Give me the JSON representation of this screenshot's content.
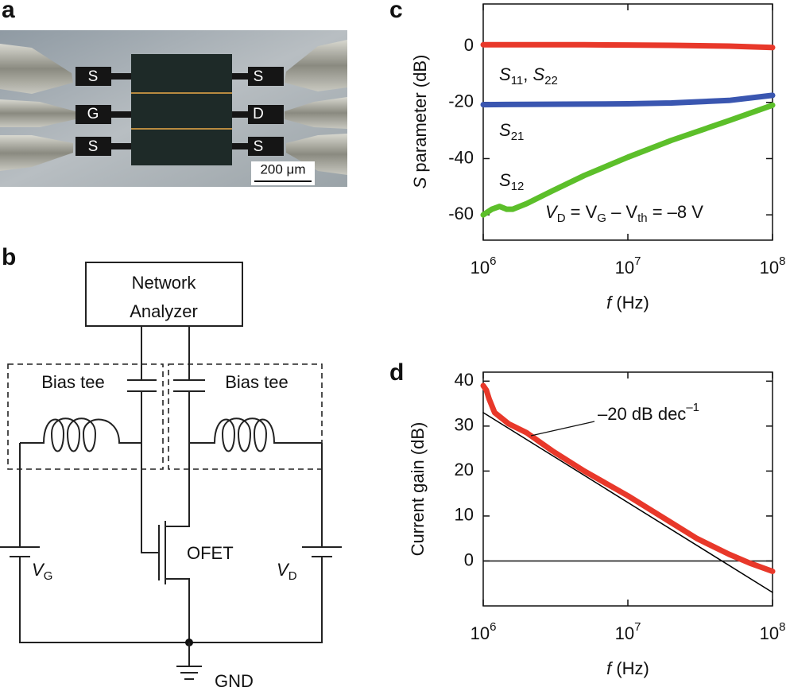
{
  "panel_a": {
    "letter": "a",
    "left_pads": [
      "S",
      "G",
      "S"
    ],
    "right_pads": [
      "S",
      "D",
      "S"
    ],
    "scale_bar": "200 μm"
  },
  "panel_b": {
    "letter": "b",
    "analyzer": [
      "Network",
      "Analyzer"
    ],
    "bias_tee_left": "Bias tee",
    "bias_tee_right": "Bias tee",
    "transistor": "OFET",
    "source_left": [
      {
        "text": "V",
        "italic": true
      },
      {
        "text": "G",
        "sub": true
      }
    ],
    "source_right": [
      {
        "text": "V",
        "italic": true
      },
      {
        "text": "D",
        "sub": true
      }
    ],
    "ground": "GND"
  },
  "chart_data": [
    {
      "letter": "c",
      "type": "line",
      "xscale": "log",
      "xlim": [
        1000000,
        100000000
      ],
      "xticks": [
        {
          "value": 1000000,
          "label": [
            {
              "text": "10"
            },
            {
              "text": "6",
              "sup": true
            }
          ]
        },
        {
          "value": 10000000,
          "label": [
            {
              "text": "10"
            },
            {
              "text": "7",
              "sup": true
            }
          ]
        },
        {
          "value": 100000000,
          "label": [
            {
              "text": "10"
            },
            {
              "text": "8",
              "sup": true
            }
          ]
        }
      ],
      "ylim": [
        -69,
        15
      ],
      "yticks": [
        0,
        -20,
        -40,
        -60
      ],
      "xlabel": [
        {
          "text": "f",
          "italic": true
        },
        {
          "text": " (Hz)"
        }
      ],
      "ylabel": [
        {
          "text": "S",
          "italic": true
        },
        {
          "text": " parameter (dB)"
        }
      ],
      "series": [
        {
          "name": [
            {
              "text": "S",
              "italic": true
            },
            {
              "text": "11",
              "sub": true
            },
            {
              "text": ", "
            },
            {
              "text": "S",
              "italic": true
            },
            {
              "text": "22",
              "sub": true
            }
          ],
          "color": "#e8382a",
          "x": [
            1000000,
            2000000,
            5000000,
            10000000,
            20000000,
            50000000,
            100000000
          ],
          "values": [
            0.5,
            0.5,
            0.5,
            0.4,
            0.3,
            0,
            -0.5
          ]
        },
        {
          "name": [
            {
              "text": "S",
              "italic": true
            },
            {
              "text": "21",
              "sub": true
            }
          ],
          "color": "#3a56b0",
          "x": [
            1000000,
            2000000,
            5000000,
            10000000,
            20000000,
            50000000,
            100000000
          ],
          "values": [
            -20.8,
            -20.7,
            -20.6,
            -20.5,
            -20.2,
            -19.3,
            -17.5
          ]
        },
        {
          "name": [
            {
              "text": "S",
              "italic": true
            },
            {
              "text": "12",
              "sub": true
            }
          ],
          "color": "#5cbf2a",
          "x": [
            1000000,
            1150000,
            1300000,
            1450000,
            1600000,
            2000000,
            3000000,
            5000000,
            10000000,
            20000000,
            50000000,
            100000000
          ],
          "values": [
            -60,
            -58,
            -57,
            -58,
            -58,
            -56,
            -51.5,
            -46,
            -39.5,
            -33.5,
            -26.5,
            -21
          ]
        }
      ],
      "annotation": [
        {
          "text": "V",
          "italic": true
        },
        {
          "text": "D",
          "sub": true
        },
        {
          "text": " = V"
        },
        {
          "text": "G",
          "sub": true
        },
        {
          "text": " – V"
        },
        {
          "text": "th",
          "sub": true
        },
        {
          "text": " = –8 V"
        }
      ]
    },
    {
      "letter": "d",
      "type": "line",
      "xscale": "log",
      "xlim": [
        1000000,
        100000000
      ],
      "xticks": [
        {
          "value": 1000000,
          "label": [
            {
              "text": "10"
            },
            {
              "text": "6",
              "sup": true
            }
          ]
        },
        {
          "value": 10000000,
          "label": [
            {
              "text": "10"
            },
            {
              "text": "7",
              "sup": true
            }
          ]
        },
        {
          "value": 100000000,
          "label": [
            {
              "text": "10"
            },
            {
              "text": "8",
              "sup": true
            }
          ]
        }
      ],
      "ylim": [
        -10,
        42
      ],
      "yticks": [
        0,
        10,
        20,
        30,
        40
      ],
      "xlabel": [
        {
          "text": "f",
          "italic": true
        },
        {
          "text": " (Hz)"
        }
      ],
      "ylabel": [
        {
          "text": "Current gain (dB)"
        }
      ],
      "hline": 0,
      "series": [
        {
          "color": "#e8382a",
          "x": [
            1000000,
            1050000,
            1100000,
            1200000,
            1500000,
            2000000,
            3000000,
            5000000,
            10000000,
            20000000,
            30000000,
            50000000,
            70000000,
            100000000
          ],
          "values": [
            39,
            38,
            36,
            33,
            30.5,
            28.5,
            24.5,
            20,
            14.5,
            8.5,
            5,
            1.5,
            -0.5,
            -2.3
          ]
        },
        {
          "color": "#000000",
          "x": [
            1000000,
            100000000
          ],
          "values": [
            33,
            -7
          ]
        }
      ],
      "annotation": [
        {
          "text": "–20 dB dec"
        },
        {
          "text": "–1",
          "sup": true
        }
      ]
    }
  ]
}
